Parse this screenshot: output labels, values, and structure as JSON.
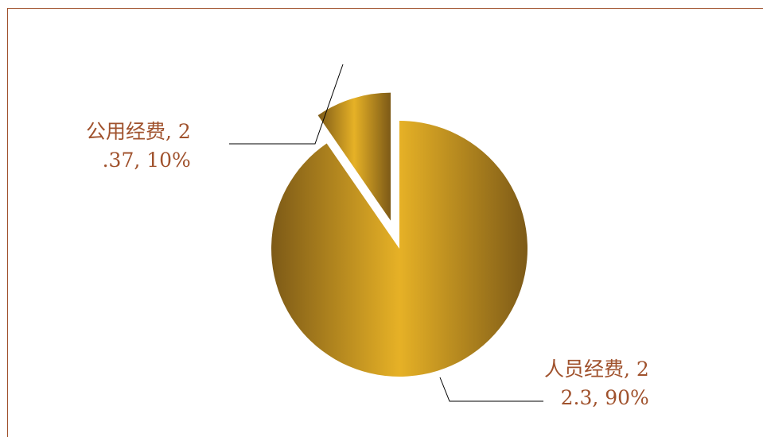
{
  "chart_data": {
    "type": "pie",
    "title": "",
    "slices": [
      {
        "name": "人员经费",
        "value": 22.3,
        "percent": "90%",
        "label_line1": "人员经费, 2",
        "label_line2": "2.3, 90%",
        "exploded": false
      },
      {
        "name": "公用经费",
        "value": 2.37,
        "percent": "10%",
        "label_line1": "公用经费, 2",
        "label_line2": ".37, 10%",
        "exploded": true
      }
    ],
    "legend": "none"
  },
  "colors": {
    "gold_dark": "#7d5a17",
    "gold_light": "#e6b126",
    "frame": "#a0522d",
    "label_text": "#a0522d",
    "leader": "#000000"
  }
}
